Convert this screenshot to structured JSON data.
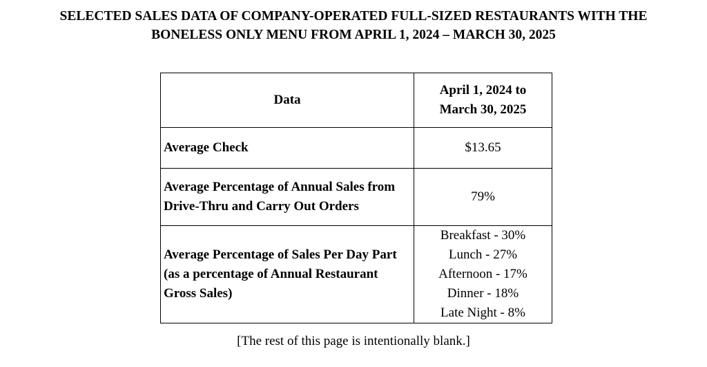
{
  "title": {
    "line1": "SELECTED SALES DATA OF COMPANY-OPERATED FULL-SIZED RESTAURANTS WITH THE",
    "line2": "BONELESS ONLY MENU FROM APRIL 1, 2024 – MARCH 30, 2025"
  },
  "table": {
    "header": {
      "label": "Data",
      "period_line1": "April 1, 2024 to",
      "period_line2": "March 30, 2025"
    },
    "rows": [
      {
        "label": "Average Check",
        "value": "$13.65"
      },
      {
        "label": "Average Percentage of Annual Sales from Drive-Thru and Carry Out Orders",
        "value": "79%"
      },
      {
        "label": "Average Percentage of Sales Per Day Part (as a percentage of Annual Restaurant Gross Sales)",
        "values": [
          "Breakfast - 30%",
          "Lunch - 27%",
          "Afternoon - 17%",
          "Dinner - 18%",
          "Late Night - 8%"
        ]
      }
    ]
  },
  "footnote": "[The rest of this page is intentionally blank.]"
}
